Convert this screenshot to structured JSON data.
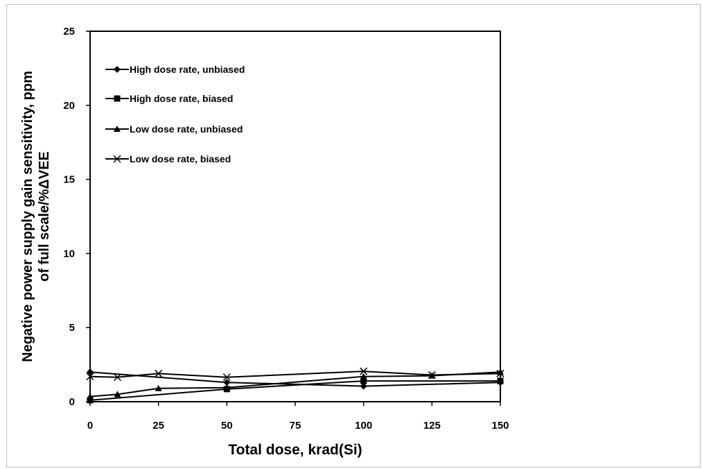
{
  "chart_data": {
    "type": "line",
    "title": "",
    "xlabel": "Total dose, krad(Si)",
    "ylabel": [
      "Negative power supply gain sensitivity, ppm",
      "of full scale/%ΔVEE"
    ],
    "xlim": [
      0,
      150
    ],
    "ylim": [
      0,
      25
    ],
    "xticks": [
      0,
      25,
      50,
      75,
      100,
      125,
      150
    ],
    "yticks": [
      0,
      5,
      10,
      15,
      20,
      25
    ],
    "grid": false,
    "legend_position": "top-left inside plot",
    "series": [
      {
        "name": "High dose rate, unbiased",
        "marker": "diamond",
        "x": [
          0,
          50,
          100,
          150
        ],
        "y": [
          2.0,
          1.3,
          1.05,
          1.3
        ]
      },
      {
        "name": "High dose rate, biased",
        "marker": "square",
        "x": [
          0,
          50,
          100,
          150
        ],
        "y": [
          0.1,
          0.85,
          1.4,
          1.4
        ]
      },
      {
        "name": "Low dose rate, unbiased",
        "marker": "triangle",
        "x": [
          0,
          10,
          25,
          50,
          100,
          125,
          150
        ],
        "y": [
          0.35,
          0.5,
          0.9,
          0.95,
          1.7,
          1.75,
          2.0
        ]
      },
      {
        "name": "Low dose rate, biased",
        "marker": "x",
        "x": [
          0,
          10,
          25,
          50,
          100,
          125,
          150
        ],
        "y": [
          1.7,
          1.65,
          1.9,
          1.65,
          2.05,
          1.8,
          1.9
        ]
      }
    ]
  }
}
